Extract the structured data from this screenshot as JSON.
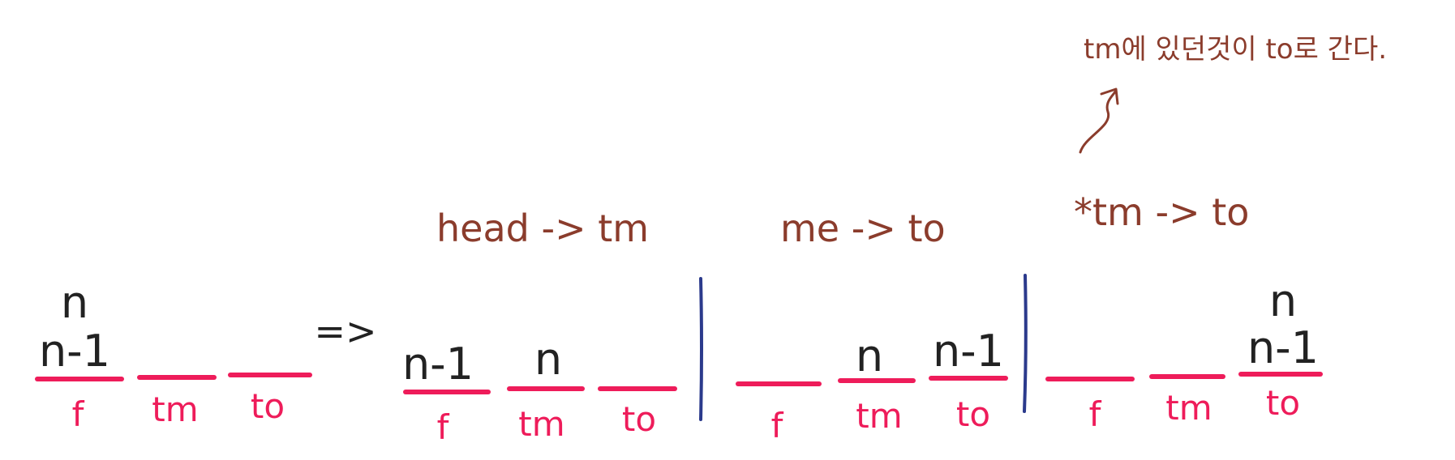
{
  "colors": {
    "peg_line": "#ee1c5a",
    "disk_text": "#222222",
    "annotation": "#8b3c2c",
    "divider": "#2b3a8c"
  },
  "steps": [
    {
      "pegs": [
        {
          "label": "f",
          "disks": [
            "n",
            "n-1"
          ]
        },
        {
          "label": "tm",
          "disks": []
        },
        {
          "label": "to",
          "disks": []
        }
      ]
    },
    {
      "caption": "head -> tm",
      "pegs": [
        {
          "label": "f",
          "disks": [
            "n-1"
          ]
        },
        {
          "label": "tm",
          "disks": [
            "n"
          ]
        },
        {
          "label": "to",
          "disks": []
        }
      ]
    },
    {
      "caption": "me -> to",
      "pegs": [
        {
          "label": "f",
          "disks": []
        },
        {
          "label": "tm",
          "disks": [
            "n"
          ]
        },
        {
          "label": "to",
          "disks": [
            "n-1"
          ]
        }
      ]
    },
    {
      "caption": "*tm -> to",
      "note": "tm에 있던것이 to로 간다.",
      "pegs": [
        {
          "label": "f",
          "disks": []
        },
        {
          "label": "tm",
          "disks": []
        },
        {
          "label": "to",
          "disks": [
            "n",
            "n-1"
          ]
        }
      ]
    }
  ],
  "transition_arrow": "=>"
}
